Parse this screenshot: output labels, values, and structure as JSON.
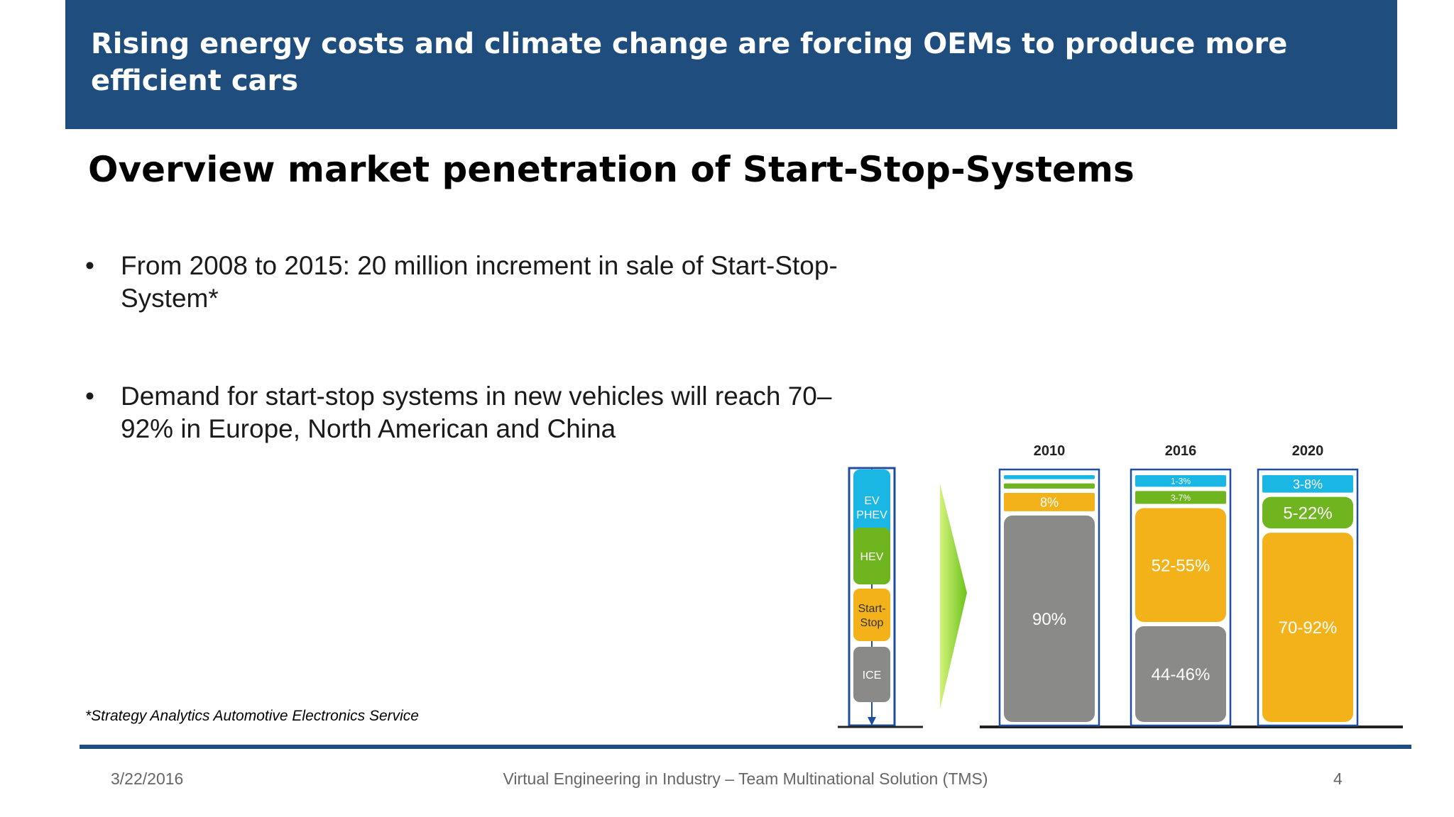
{
  "header": {
    "title": "Rising energy costs and climate change are forcing OEMs to produce more efficient cars"
  },
  "subtitle": "Overview market penetration of Start-Stop-Systems",
  "bullets": [
    "From 2008 to 2015: 20 million increment in sale of Start-Stop-System*",
    "Demand for start-stop systems in new vehicles will reach 70–92% in Europe, North American and China"
  ],
  "footnote": "*Strategy Analytics Automotive Electronics Service",
  "footer": {
    "date": "3/22/2016",
    "center": "Virtual Engineering in Industry – Team Multinational Solution (TMS)",
    "page": "4"
  },
  "colors": {
    "brand": "#1f4e7e",
    "ev_phev": "#1ab7e4",
    "hev": "#6fb51f",
    "start_stop": "#f3b21a",
    "ice": "#8a8a89"
  },
  "chart_data": {
    "type": "bar",
    "title": "",
    "legend": [
      "EV PHEV",
      "HEV",
      "Start-Stop",
      "ICE"
    ],
    "categories": [
      "2010",
      "2016",
      "2020"
    ],
    "stacks": [
      {
        "year": "2010",
        "segments": [
          {
            "type": "EV/PHEV",
            "label": "",
            "share": 1
          },
          {
            "type": "HEV",
            "label": "",
            "share": 1
          },
          {
            "type": "Start-Stop",
            "label": "8%",
            "share": 8
          },
          {
            "type": "ICE",
            "label": "90%",
            "share": 90
          }
        ]
      },
      {
        "year": "2016",
        "segments": [
          {
            "type": "EV/PHEV",
            "label": "1-3%",
            "share": 2
          },
          {
            "type": "HEV",
            "label": "3-7%",
            "share": 5
          },
          {
            "type": "Start-Stop",
            "label": "52-55%",
            "share": 53.5
          },
          {
            "type": "ICE",
            "label": "44-46%",
            "share": 45
          }
        ]
      },
      {
        "year": "2020",
        "segments": [
          {
            "type": "EV/PHEV",
            "label": "3-8%",
            "share": 5.5
          },
          {
            "type": "HEV",
            "label": "5-22%",
            "share": 13.5
          },
          {
            "type": "Start-Stop",
            "label": "70-92%",
            "share": 81
          }
        ]
      }
    ]
  }
}
